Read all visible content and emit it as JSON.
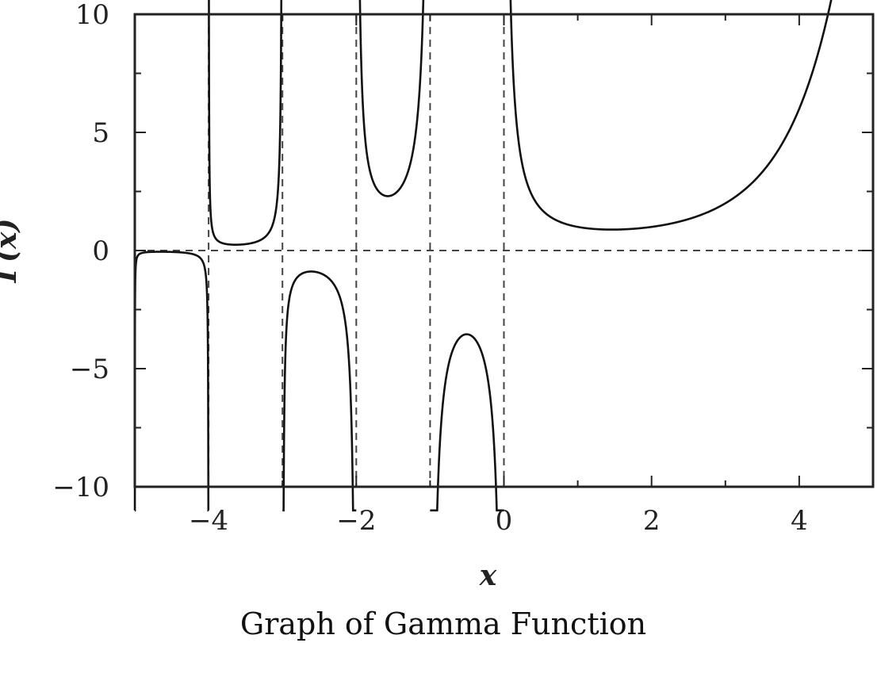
{
  "chart_data": {
    "type": "line",
    "caption": "Graph of Gamma Function",
    "xlabel": "x",
    "ylabel": "Γ(x)",
    "xlim": [
      -5,
      5
    ],
    "ylim": [
      -10,
      10
    ],
    "x_ticks": [
      -4,
      -2,
      0,
      2,
      4
    ],
    "x_tick_labels": [
      "−4",
      "−2",
      "0",
      "2",
      "4"
    ],
    "y_ticks": [
      -10,
      -5,
      0,
      5,
      10
    ],
    "y_tick_labels": [
      "−10",
      "−5",
      "0",
      "5",
      "10"
    ],
    "x_minor_step": 1,
    "y_minor_step": 2.5,
    "asymptotes_x": [
      -4,
      -3,
      -2,
      -1,
      0
    ],
    "zero_line_y": 0,
    "series": [
      {
        "function": "gamma",
        "color": "#111111",
        "branches": [
          [
            -5,
            -4
          ],
          [
            -4,
            -3
          ],
          [
            -3,
            -2
          ],
          [
            -2,
            -1
          ],
          [
            -1,
            0
          ],
          [
            0,
            5
          ]
        ]
      }
    ],
    "grid": false
  }
}
